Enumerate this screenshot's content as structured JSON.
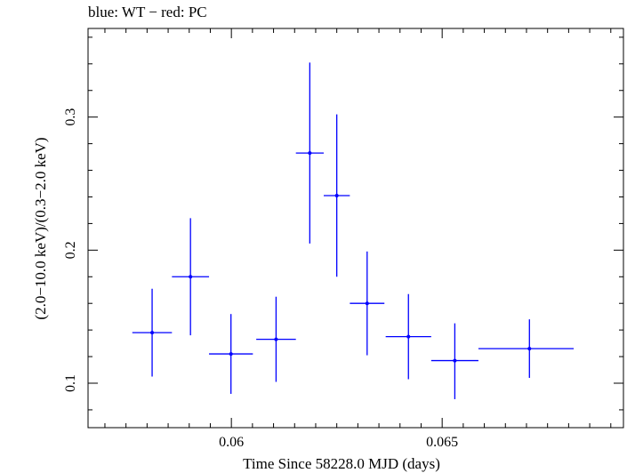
{
  "chart_data": {
    "type": "scatter",
    "title": "blue: WT − red: PC",
    "xlabel": "Time Since 58228.0 MJD (days)",
    "ylabel": "(2.0−10.0 keV)/(0.3−2.0 keV)",
    "xlim": [
      0.0566,
      0.0693
    ],
    "ylim": [
      0.0666,
      0.3666
    ],
    "x_ticks": [
      0.06,
      0.065
    ],
    "x_tick_labels": [
      "0.06",
      "0.065"
    ],
    "y_ticks": [
      0.1,
      0.2,
      0.3
    ],
    "y_tick_labels": [
      "0.1",
      "0.2",
      "0.3"
    ],
    "grid": false,
    "series": [
      {
        "color": "#0000ff",
        "points": [
          {
            "x": 0.05812,
            "y": 0.138,
            "x_lo": 0.05765,
            "x_hi": 0.05859,
            "y_lo": 0.105,
            "y_hi": 0.171
          },
          {
            "x": 0.05903,
            "y": 0.18,
            "x_lo": 0.05859,
            "x_hi": 0.05947,
            "y_lo": 0.136,
            "y_hi": 0.224
          },
          {
            "x": 0.05999,
            "y": 0.122,
            "x_lo": 0.05947,
            "x_hi": 0.06051,
            "y_lo": 0.092,
            "y_hi": 0.152
          },
          {
            "x": 0.06106,
            "y": 0.133,
            "x_lo": 0.06059,
            "x_hi": 0.06153,
            "y_lo": 0.101,
            "y_hi": 0.165
          },
          {
            "x": 0.06186,
            "y": 0.273,
            "x_lo": 0.06153,
            "x_hi": 0.06219,
            "y_lo": 0.205,
            "y_hi": 0.341
          },
          {
            "x": 0.0625,
            "y": 0.241,
            "x_lo": 0.06219,
            "x_hi": 0.06281,
            "y_lo": 0.18,
            "y_hi": 0.302
          },
          {
            "x": 0.06322,
            "y": 0.16,
            "x_lo": 0.06281,
            "x_hi": 0.06363,
            "y_lo": 0.121,
            "y_hi": 0.199
          },
          {
            "x": 0.0642,
            "y": 0.135,
            "x_lo": 0.06366,
            "x_hi": 0.06474,
            "y_lo": 0.103,
            "y_hi": 0.167
          },
          {
            "x": 0.0653,
            "y": 0.117,
            "x_lo": 0.06474,
            "x_hi": 0.06586,
            "y_lo": 0.088,
            "y_hi": 0.145
          },
          {
            "x": 0.06707,
            "y": 0.126,
            "x_lo": 0.06586,
            "x_hi": 0.06812,
            "y_lo": 0.104,
            "y_hi": 0.148
          }
        ]
      }
    ]
  }
}
